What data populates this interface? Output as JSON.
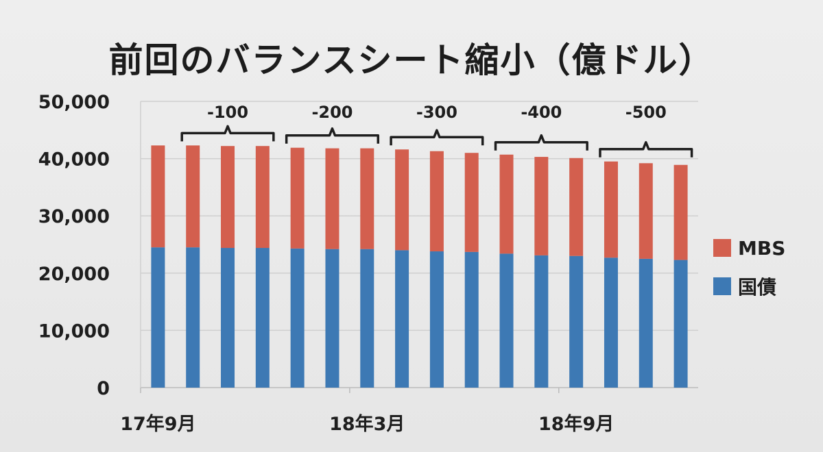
{
  "colors": {
    "mbs": "#d35f4e",
    "treasury": "#3d79b4",
    "grid": "#cfcfcf",
    "axis": "#bbbbbb",
    "bracket": "#1e1e1e"
  },
  "chart_data": {
    "type": "bar",
    "stacked": true,
    "title": "前回のバランスシート縮小（億ドル）",
    "ylim": [
      0,
      50000
    ],
    "yticks": [
      "50,000",
      "40,000",
      "30,000",
      "20,000",
      "10,000",
      "0"
    ],
    "ytick_values": [
      50000,
      40000,
      30000,
      20000,
      10000,
      0
    ],
    "x_labels": [
      {
        "index": 0,
        "label": "17年9月"
      },
      {
        "index": 6,
        "label": "18年3月"
      },
      {
        "index": 12,
        "label": "18年9月"
      }
    ],
    "series": [
      {
        "name": "国債",
        "color_key": "treasury",
        "values": [
          24500,
          24500,
          24400,
          24400,
          24300,
          24200,
          24200,
          24000,
          23800,
          23700,
          23400,
          23100,
          23000,
          22700,
          22500,
          22300
        ]
      },
      {
        "name": "MBS",
        "color_key": "mbs",
        "values": [
          17800,
          17800,
          17800,
          17800,
          17600,
          17600,
          17600,
          17600,
          17500,
          17300,
          17300,
          17200,
          17100,
          16800,
          16700,
          16600
        ]
      }
    ],
    "annotations": [
      {
        "label": "-100",
        "from": 1,
        "to": 3
      },
      {
        "label": "-200",
        "from": 4,
        "to": 6
      },
      {
        "label": "-300",
        "from": 7,
        "to": 9
      },
      {
        "label": "-400",
        "from": 10,
        "to": 12
      },
      {
        "label": "-500",
        "from": 13,
        "to": 15
      }
    ]
  },
  "legend": [
    {
      "label": "MBS",
      "color_key": "mbs"
    },
    {
      "label": "国債",
      "color_key": "treasury"
    }
  ]
}
